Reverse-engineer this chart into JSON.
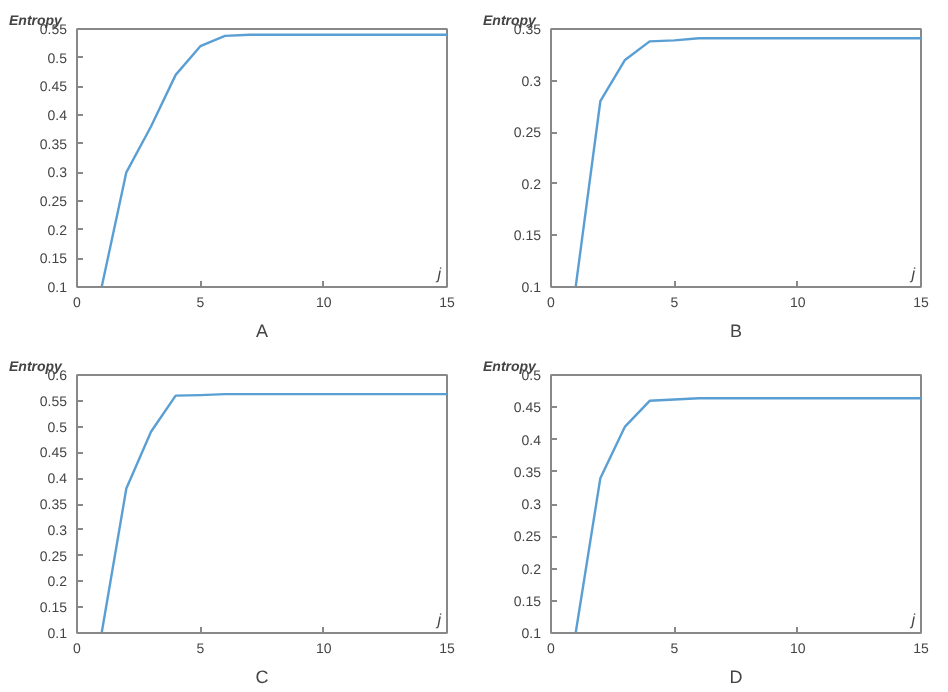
{
  "chart_data": [
    {
      "type": "line",
      "ylabel": "Entropy",
      "xlabel": "A",
      "annotations": [
        "j"
      ],
      "x": [
        1,
        2,
        3,
        4,
        5,
        6,
        7,
        8,
        9,
        10,
        11,
        12,
        13,
        14,
        15
      ],
      "series": [
        {
          "color": "#5a9fd4",
          "values": [
            0.1,
            0.3,
            0.38,
            0.47,
            0.52,
            0.538,
            0.54,
            0.54,
            0.54,
            0.54,
            0.54,
            0.54,
            0.54,
            0.54,
            0.54
          ]
        }
      ],
      "xlim": [
        0,
        15
      ],
      "xticks": [
        0,
        5,
        10,
        15
      ],
      "ylim": [
        0.1,
        0.55
      ],
      "yticks": [
        0.1,
        0.15,
        0.2,
        0.25,
        0.3,
        0.35,
        0.4,
        0.45,
        0.5,
        0.55
      ],
      "grid": false
    },
    {
      "type": "line",
      "ylabel": "Entropy",
      "xlabel": "B",
      "annotations": [
        "j"
      ],
      "x": [
        1,
        2,
        3,
        4,
        5,
        6,
        7,
        8,
        9,
        10,
        11,
        12,
        13,
        14,
        15
      ],
      "series": [
        {
          "color": "#5a9fd4",
          "values": [
            0.1,
            0.28,
            0.32,
            0.338,
            0.339,
            0.341,
            0.341,
            0.341,
            0.341,
            0.341,
            0.341,
            0.341,
            0.341,
            0.341,
            0.341
          ]
        }
      ],
      "xlim": [
        0,
        15
      ],
      "xticks": [
        0,
        5,
        10,
        15
      ],
      "ylim": [
        0.1,
        0.35
      ],
      "yticks": [
        0.1,
        0.15,
        0.2,
        0.25,
        0.3,
        0.35
      ],
      "grid": false
    },
    {
      "type": "line",
      "ylabel": "Entropy",
      "xlabel": "C",
      "annotations": [
        "j"
      ],
      "x": [
        1,
        2,
        3,
        4,
        5,
        6,
        7,
        8,
        9,
        10,
        11,
        12,
        13,
        14,
        15
      ],
      "series": [
        {
          "color": "#5a9fd4",
          "values": [
            0.1,
            0.38,
            0.49,
            0.56,
            0.561,
            0.563,
            0.563,
            0.563,
            0.563,
            0.563,
            0.563,
            0.563,
            0.563,
            0.563,
            0.563
          ]
        }
      ],
      "xlim": [
        0,
        15
      ],
      "xticks": [
        0,
        5,
        10,
        15
      ],
      "ylim": [
        0.1,
        0.6
      ],
      "yticks": [
        0.1,
        0.15,
        0.2,
        0.25,
        0.3,
        0.35,
        0.4,
        0.45,
        0.5,
        0.55,
        0.6
      ],
      "grid": false
    },
    {
      "type": "line",
      "ylabel": "Entropy",
      "xlabel": "D",
      "annotations": [
        "j"
      ],
      "x": [
        1,
        2,
        3,
        4,
        5,
        6,
        7,
        8,
        9,
        10,
        11,
        12,
        13,
        14,
        15
      ],
      "series": [
        {
          "color": "#5a9fd4",
          "values": [
            0.1,
            0.34,
            0.42,
            0.46,
            0.462,
            0.464,
            0.464,
            0.464,
            0.464,
            0.464,
            0.464,
            0.464,
            0.464,
            0.464,
            0.464
          ]
        }
      ],
      "xlim": [
        0,
        15
      ],
      "xticks": [
        0,
        5,
        10,
        15
      ],
      "ylim": [
        0.1,
        0.5
      ],
      "yticks": [
        0.1,
        0.15,
        0.2,
        0.25,
        0.3,
        0.35,
        0.4,
        0.45,
        0.5
      ],
      "grid": false
    }
  ]
}
